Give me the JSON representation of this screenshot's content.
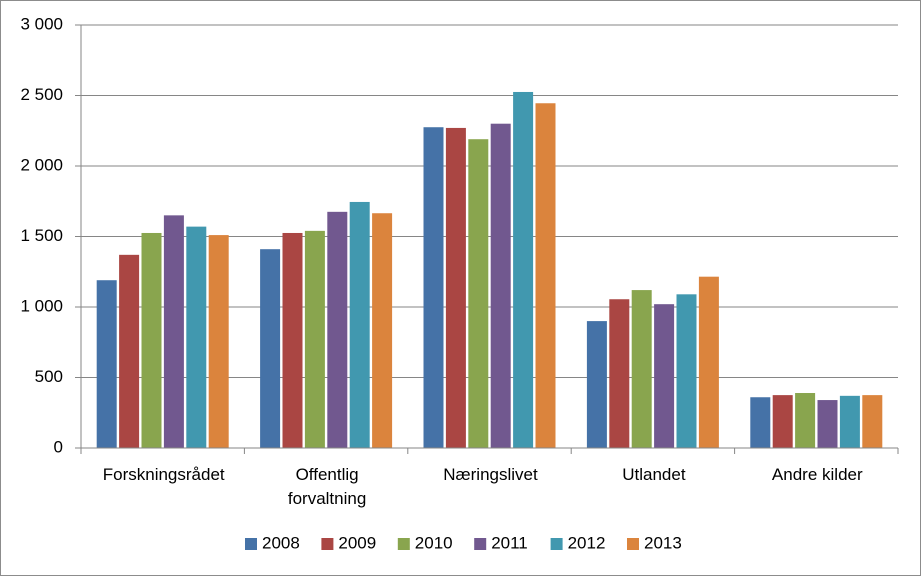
{
  "chart_data": {
    "type": "bar",
    "categories": [
      "Forskningsrådet",
      "Offentlig forvaltning",
      "Næringslivet",
      "Utlandet",
      "Andre kilder"
    ],
    "series": [
      {
        "name": "2008",
        "color": "#4572a7",
        "values": [
          1190,
          1410,
          2275,
          900,
          360
        ]
      },
      {
        "name": "2009",
        "color": "#aa4643",
        "values": [
          1370,
          1525,
          2270,
          1055,
          375
        ]
      },
      {
        "name": "2010",
        "color": "#89a54e",
        "values": [
          1525,
          1540,
          2190,
          1120,
          390
        ]
      },
      {
        "name": "2011",
        "color": "#71588f",
        "values": [
          1650,
          1675,
          2300,
          1020,
          340
        ]
      },
      {
        "name": "2012",
        "color": "#4198af",
        "values": [
          1570,
          1745,
          2525,
          1090,
          370
        ]
      },
      {
        "name": "2013",
        "color": "#db843d",
        "values": [
          1510,
          1665,
          2445,
          1215,
          375
        ]
      }
    ],
    "ylim": [
      0,
      3000
    ],
    "yticks": [
      0,
      500,
      {
        "value": 1000,
        "label": "1 000"
      },
      {
        "value": 1500,
        "label": "1 500"
      },
      {
        "value": 2000,
        "label": "2 000"
      },
      {
        "value": 2500,
        "label": "2 500"
      },
      {
        "value": 3000,
        "label": "3 000"
      }
    ],
    "grid": true,
    "legend": "bottom"
  }
}
